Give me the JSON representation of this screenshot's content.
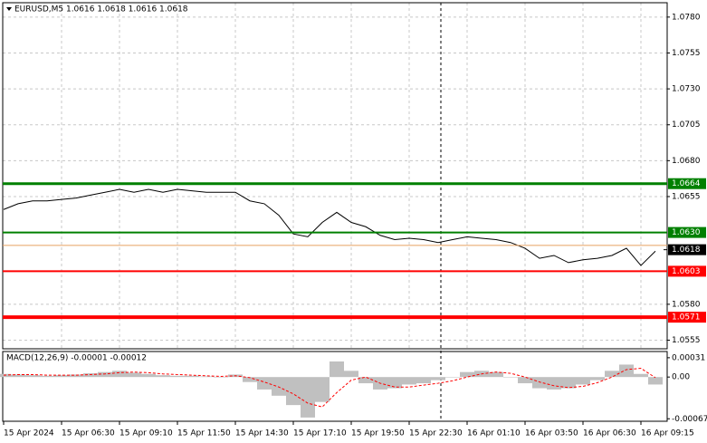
{
  "chart_data": [
    {
      "type": "line",
      "title": "EURUSD,M5  1.0616 1.0618 1.0616 1.0618",
      "categories": [
        "15 Apr 2024",
        null,
        null,
        null,
        "15 Apr 06:30",
        null,
        null,
        null,
        "15 Apr 09:10",
        null,
        null,
        null,
        "15 Apr 11:50",
        null,
        null,
        null,
        "15 Apr 14:30",
        null,
        null,
        null,
        "15 Apr 17:10",
        null,
        null,
        null,
        "15 Apr 19:50",
        null,
        null,
        null,
        "15 Apr 22:30",
        null,
        null,
        null,
        "16 Apr 01:10",
        null,
        null,
        null,
        "16 Apr 03:50",
        null,
        null,
        null,
        "16 Apr 06:30",
        null,
        null,
        null,
        "16 Apr 09:15",
        null
      ],
      "series": [
        {
          "color": "#000000",
          "values": [
            1.0646,
            1.065,
            1.0652,
            1.0652,
            1.0653,
            1.0654,
            1.0656,
            1.0658,
            1.066,
            1.0658,
            1.066,
            1.0658,
            1.066,
            1.0659,
            1.0658,
            1.0658,
            1.0658,
            1.0652,
            1.065,
            1.0642,
            1.0629,
            1.0627,
            1.0637,
            1.0644,
            1.0637,
            1.0634,
            1.0628,
            1.0625,
            1.0626,
            1.0625,
            1.0623,
            1.0625,
            1.0627,
            1.0626,
            1.0625,
            1.0623,
            1.0619,
            1.0612,
            1.0614,
            1.0609,
            1.0611,
            1.0612,
            1.0614,
            1.0619,
            1.0607,
            1.0617
          ]
        }
      ],
      "ylim": [
        1.0549,
        1.079
      ],
      "yticks": [
        {
          "value": 1.078,
          "label": "1.0780"
        },
        {
          "value": 1.0755,
          "label": "1.0755"
        },
        {
          "value": 1.073,
          "label": "1.0730"
        },
        {
          "value": 1.0705,
          "label": "1.0705"
        },
        {
          "value": 1.068,
          "label": "1.0680"
        },
        {
          "value": 1.0655,
          "label": "1.0655"
        },
        {
          "value": 1.058,
          "label": "1.0580"
        },
        {
          "value": 1.0555,
          "label": "1.0555"
        }
      ],
      "grid": true,
      "levels": [
        {
          "value": 1.0664,
          "label": "1.0664",
          "color": "#008000",
          "width": 3
        },
        {
          "value": 1.063,
          "label": "1.0630",
          "color": "#008000",
          "width": 2
        },
        {
          "value": 1.0621,
          "color": "#e8a060",
          "width": 1
        },
        {
          "value": 1.0603,
          "label": "1.0603",
          "color": "#ff0000",
          "width": 2
        },
        {
          "value": 1.0571,
          "label": "1.0571",
          "color": "#ff0000",
          "width": 4
        }
      ],
      "current_price": {
        "value": 1.0618,
        "label": "1.0618",
        "color": "#000000"
      }
    },
    {
      "type": "bar",
      "title": "MACD(12,26,9) -0.00001 -0.00012",
      "series": [
        {
          "color": "#c0c0c0",
          "values": [
            5e-05,
            4e-05,
            3e-05,
            2e-05,
            3e-05,
            4e-05,
            6e-05,
            8e-05,
            0.0001,
            7e-05,
            5e-05,
            3e-05,
            2e-05,
            2e-05,
            1e-05,
            0,
            4e-05,
            -8e-05,
            -0.0002,
            -0.0003,
            -0.00045,
            -0.00065,
            -0.0004,
            0.00025,
            0.0001,
            -0.0001,
            -0.0002,
            -0.00018,
            -0.00012,
            -0.0001,
            -5e-05,
            0,
            8e-05,
            0.0001,
            8e-05,
            0,
            -0.0001,
            -0.00018,
            -0.0002,
            -0.00018,
            -0.00012,
            -5e-05,
            0.0001,
            0.0002,
            5e-05,
            -0.00012
          ]
        },
        {
          "type": "line",
          "color": "#ff0000",
          "values": [
            3e-05,
            4e-05,
            4e-05,
            3e-05,
            3e-05,
            3e-05,
            4e-05,
            5e-05,
            7e-05,
            8e-05,
            7e-05,
            5e-05,
            4e-05,
            3e-05,
            2e-05,
            1e-05,
            2e-05,
            -1e-05,
            -8e-05,
            -0.00016,
            -0.00027,
            -0.00042,
            -0.00048,
            -0.00025,
            -5e-05,
            0,
            -0.0001,
            -0.00016,
            -0.00016,
            -0.00013,
            -0.0001,
            -6e-05,
            0,
            5e-05,
            8e-05,
            6e-05,
            0,
            -8e-05,
            -0.00014,
            -0.00017,
            -0.00015,
            -9e-05,
            0,
            0.00012,
            0.00014,
            -1e-05
          ]
        }
      ],
      "ylim": [
        -0.00071,
        0.00041
      ],
      "yticks": [
        0.00031,
        {
          "value": 0,
          "label": "0.00"
        },
        -0.00067
      ]
    }
  ]
}
